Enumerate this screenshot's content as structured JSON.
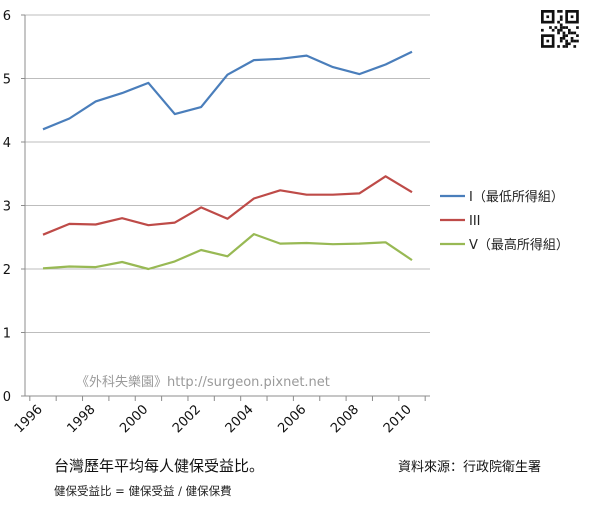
{
  "chart_data": {
    "type": "line",
    "title": "",
    "xlabel": "",
    "ylabel": "",
    "x": [
      1996,
      1997,
      1998,
      1999,
      2000,
      2001,
      2002,
      2003,
      2004,
      2005,
      2006,
      2007,
      2008,
      2009,
      2010
    ],
    "x_tick_labels": [
      "1996",
      "1998",
      "2000",
      "2002",
      "2004",
      "2006",
      "2008",
      "2010"
    ],
    "y_tick_labels": [
      "0",
      "1",
      "2",
      "3",
      "4",
      "5",
      "6"
    ],
    "xlim": [
      1996,
      2010
    ],
    "ylim": [
      0,
      6
    ],
    "grid": "horizontal",
    "legend_position": "right",
    "series": [
      {
        "name": "I（最低所得組）",
        "color": "#4a7ebb",
        "values": [
          4.2,
          4.37,
          4.64,
          4.77,
          4.93,
          4.44,
          4.55,
          5.06,
          5.29,
          5.31,
          5.36,
          5.18,
          5.07,
          5.22,
          5.42
        ]
      },
      {
        "name": "III",
        "color": "#be4b48",
        "values": [
          2.54,
          2.71,
          2.7,
          2.8,
          2.69,
          2.73,
          2.97,
          2.79,
          3.11,
          3.24,
          3.17,
          3.17,
          3.19,
          3.46,
          3.21
        ]
      },
      {
        "name": "V（最高所得組）",
        "color": "#98b954",
        "values": [
          2.01,
          2.04,
          2.03,
          2.11,
          2.0,
          2.12,
          2.3,
          2.2,
          2.55,
          2.4,
          2.41,
          2.39,
          2.4,
          2.42,
          2.14
        ]
      }
    ]
  },
  "watermark": "《外科失樂園》http://surgeon.pixnet.net",
  "caption": {
    "title": "台灣歷年平均每人健保受益比。",
    "source": "資料來源：行政院衛生署",
    "formula": "健保受益比 = 健保受益 / 健保保費"
  },
  "qr_code": {
    "icon": "qr-code-icon"
  }
}
